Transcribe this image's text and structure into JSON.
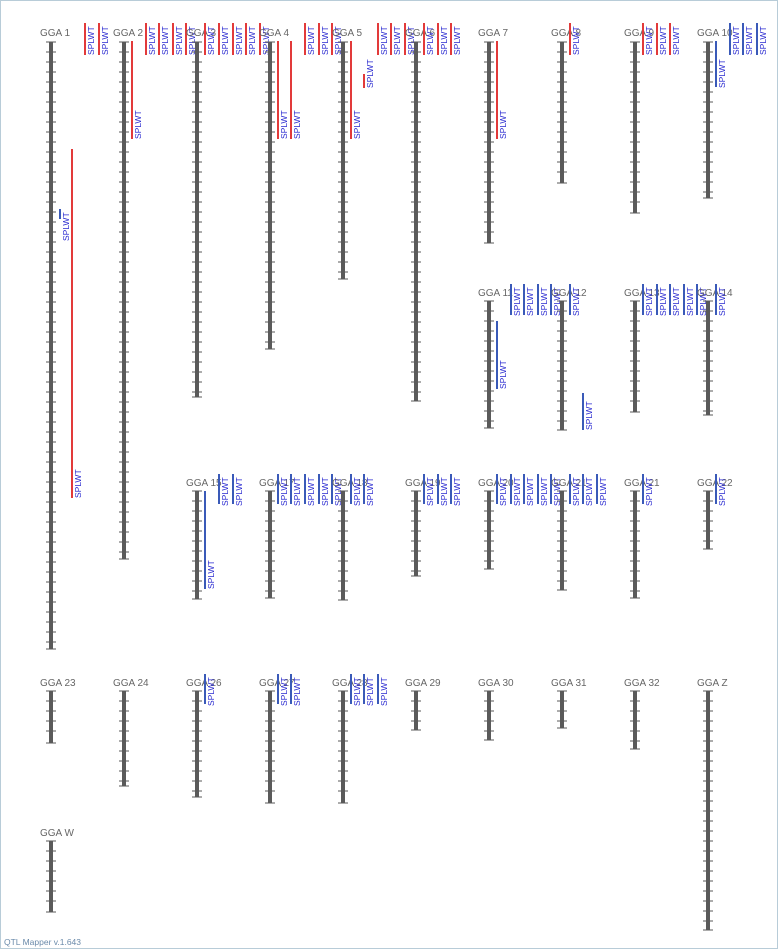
{
  "app": {
    "version_text": "QTL Mapper v.1.643"
  },
  "colors": {
    "chromosome": "#5a5a5a",
    "tick": "#5a5a5a",
    "qtl_red": "#e23a3a",
    "qtl_blue": "#3a5ab8",
    "label_text": "#666666",
    "qtl_label_text": "#2a2ad0"
  },
  "chromosomes": [
    {
      "name": "GGA 1",
      "qtls": [
        {
          "label": "SPLWT",
          "color": "red"
        },
        {
          "label": "SPLWT",
          "color": "red"
        },
        {
          "label": "SPLWT",
          "color": "blue"
        },
        {
          "label": "SPLWT",
          "color": "red"
        }
      ]
    },
    {
      "name": "GGA 2",
      "qtls": [
        {
          "label": "SPLWT",
          "color": "red"
        },
        {
          "label": "SPLWT",
          "color": "red"
        },
        {
          "label": "SPLWT",
          "color": "red"
        },
        {
          "label": "SPLWT",
          "color": "red"
        },
        {
          "label": "SPLWT",
          "color": "red"
        }
      ]
    },
    {
      "name": "GGA 3",
      "qtls": [
        {
          "label": "SPLWT",
          "color": "red"
        },
        {
          "label": "SPLWT",
          "color": "red"
        },
        {
          "label": "SPLWT",
          "color": "red"
        },
        {
          "label": "SPLWT",
          "color": "red"
        },
        {
          "label": "SPLWT",
          "color": "red"
        }
      ]
    },
    {
      "name": "GGA 4",
      "qtls": [
        {
          "label": "SPLWT",
          "color": "red"
        },
        {
          "label": "SPLWT",
          "color": "red"
        },
        {
          "label": "SPLWT",
          "color": "red"
        },
        {
          "label": "SPLWT",
          "color": "red"
        },
        {
          "label": "SPLWT",
          "color": "red"
        }
      ]
    },
    {
      "name": "GGA 5",
      "qtls": [
        {
          "label": "SPLWT",
          "color": "red"
        },
        {
          "label": "SPLWT",
          "color": "red"
        },
        {
          "label": "SPLWT",
          "color": "red"
        },
        {
          "label": "SPLWT",
          "color": "red"
        },
        {
          "label": "SPLWT",
          "color": "red"
        }
      ]
    },
    {
      "name": "GGA 6",
      "qtls": [
        {
          "label": "SPLWT",
          "color": "red"
        },
        {
          "label": "SPLWT",
          "color": "red"
        },
        {
          "label": "SPLWT",
          "color": "red"
        }
      ]
    },
    {
      "name": "GGA 7",
      "qtls": [
        {
          "label": "SPLWT",
          "color": "red"
        }
      ]
    },
    {
      "name": "GGA 8",
      "qtls": [
        {
          "label": "SPLWT",
          "color": "red"
        }
      ]
    },
    {
      "name": "GGA 9",
      "qtls": [
        {
          "label": "SPLWT",
          "color": "red"
        },
        {
          "label": "SPLWT",
          "color": "red"
        },
        {
          "label": "SPLWT",
          "color": "red"
        }
      ]
    },
    {
      "name": "GGA 10",
      "qtls": [
        {
          "label": "SPLWT",
          "color": "blue"
        },
        {
          "label": "SPLWT",
          "color": "blue"
        },
        {
          "label": "SPLWT",
          "color": "blue"
        },
        {
          "label": "SPLWT",
          "color": "blue"
        }
      ]
    },
    {
      "name": "GGA 11",
      "qtls": [
        {
          "label": "SPLWT",
          "color": "blue"
        },
        {
          "label": "SPLWT",
          "color": "blue"
        },
        {
          "label": "SPLWT",
          "color": "blue"
        },
        {
          "label": "SPLWT",
          "color": "blue"
        },
        {
          "label": "SPLWT",
          "color": "blue"
        }
      ]
    },
    {
      "name": "GGA 12",
      "qtls": [
        {
          "label": "SPLWT",
          "color": "blue"
        },
        {
          "label": "SPLWT",
          "color": "blue"
        }
      ]
    },
    {
      "name": "GGA 13",
      "qtls": [
        {
          "label": "SPLWT",
          "color": "blue"
        },
        {
          "label": "SPLWT",
          "color": "blue"
        },
        {
          "label": "SPLWT",
          "color": "blue"
        },
        {
          "label": "SPLWT",
          "color": "blue"
        },
        {
          "label": "SPLWT",
          "color": "blue"
        }
      ]
    },
    {
      "name": "GGA 14",
      "qtls": [
        {
          "label": "SPLWT",
          "color": "blue"
        }
      ]
    },
    {
      "name": "GGA 15",
      "qtls": [
        {
          "label": "SPLWT",
          "color": "blue"
        },
        {
          "label": "SPLWT",
          "color": "blue"
        },
        {
          "label": "SPLWT",
          "color": "blue"
        }
      ]
    },
    {
      "name": "GGA 17",
      "qtls": [
        {
          "label": "SPLWT",
          "color": "blue"
        },
        {
          "label": "SPLWT",
          "color": "blue"
        },
        {
          "label": "SPLWT",
          "color": "blue"
        },
        {
          "label": "SPLWT",
          "color": "blue"
        },
        {
          "label": "SPLWT",
          "color": "blue"
        }
      ]
    },
    {
      "name": "GGA 18",
      "qtls": [
        {
          "label": "SPLWT",
          "color": "blue"
        },
        {
          "label": "SPLWT",
          "color": "blue"
        }
      ]
    },
    {
      "name": "GGA 19",
      "qtls": [
        {
          "label": "SPLWT",
          "color": "blue"
        },
        {
          "label": "SPLWT",
          "color": "blue"
        },
        {
          "label": "SPLWT",
          "color": "blue"
        }
      ]
    },
    {
      "name": "GGA 20",
      "qtls": [
        {
          "label": "SPLWT",
          "color": "blue"
        },
        {
          "label": "SPLWT",
          "color": "blue"
        },
        {
          "label": "SPLWT",
          "color": "blue"
        },
        {
          "label": "SPLWT",
          "color": "blue"
        },
        {
          "label": "SPLWT",
          "color": "blue"
        }
      ]
    },
    {
      "name": "GGA 21",
      "qtls": [
        {
          "label": "SPLWT",
          "color": "blue"
        },
        {
          "label": "SPLWT",
          "color": "blue"
        },
        {
          "label": "SPLWT",
          "color": "blue"
        }
      ]
    },
    {
      "name": "GGA 21",
      "qtls": [
        {
          "label": "SPLWT",
          "color": "blue"
        }
      ]
    },
    {
      "name": "GGA 22",
      "qtls": [
        {
          "label": "SPLWT",
          "color": "blue"
        }
      ]
    },
    {
      "name": "GGA 23",
      "qtls": []
    },
    {
      "name": "GGA 24",
      "qtls": []
    },
    {
      "name": "GGA 26",
      "qtls": [
        {
          "label": "SPLWT",
          "color": "blue"
        }
      ]
    },
    {
      "name": "GGA 27",
      "qtls": [
        {
          "label": "SPLWT",
          "color": "blue"
        },
        {
          "label": "SPLWT",
          "color": "blue"
        }
      ]
    },
    {
      "name": "GGA 28",
      "qtls": [
        {
          "label": "SPLWT",
          "color": "blue"
        },
        {
          "label": "SPLWT",
          "color": "blue"
        },
        {
          "label": "SPLWT",
          "color": "blue"
        }
      ]
    },
    {
      "name": "GGA 29",
      "qtls": []
    },
    {
      "name": "GGA 30",
      "qtls": []
    },
    {
      "name": "GGA 31",
      "qtls": []
    },
    {
      "name": "GGA 32",
      "qtls": []
    },
    {
      "name": "GGA Z",
      "qtls": []
    },
    {
      "name": "GGA W",
      "qtls": []
    }
  ]
}
